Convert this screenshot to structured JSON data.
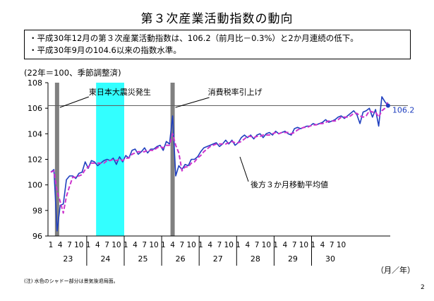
{
  "title": "第３次産業活動指数の動向",
  "summary": [
    "・平成30年12月の第３次産業活動指数は、106.2（前月比－0.3%）と2か月連続の低下。",
    "・平成30年9月の104.6以来の指数水準。"
  ],
  "unit_label": "(22年＝100、季節調整済)",
  "footnote": "(注) 水色のシャドー部分は景気後退局面。",
  "page_number": "2",
  "chart_data": {
    "type": "line",
    "title": "",
    "ylim": [
      96,
      108
    ],
    "yticks": [
      96,
      98,
      100,
      102,
      104,
      106,
      108
    ],
    "month_ticks": [
      "1",
      "4",
      "7",
      "10"
    ],
    "year_labels": [
      "23",
      "24",
      "25",
      "26",
      "27",
      "28",
      "29",
      "30"
    ],
    "x_unit_label": "（月／年）",
    "reference_line": 106.2,
    "end_label": "106.2",
    "recession_shade": {
      "start_index": 15,
      "end_index": 23,
      "color": "#33ffff"
    },
    "event_markers": [
      {
        "label": "東日本大震災発生",
        "index": 2
      },
      {
        "label": "消費税率引上げ",
        "index": 39
      }
    ],
    "moving_average_label": "後方３か月移動平均値",
    "series": [
      {
        "name": "",
        "color": "#1f3fbf",
        "style": "solid",
        "values": [
          101.0,
          101.2,
          96.4,
          98.4,
          98.5,
          100.4,
          100.7,
          100.7,
          100.5,
          100.9,
          101.0,
          101.8,
          101.3,
          101.9,
          101.8,
          101.5,
          101.7,
          101.9,
          102.0,
          101.9,
          102.1,
          101.6,
          102.2,
          101.8,
          102.3,
          102.1,
          102.7,
          102.8,
          102.4,
          102.6,
          102.9,
          102.5,
          102.8,
          102.8,
          103.0,
          103.1,
          102.7,
          103.4,
          103.2,
          105.4,
          100.7,
          101.5,
          101.2,
          101.6,
          101.5,
          102.0,
          102.0,
          102.2,
          102.6,
          102.9,
          103.0,
          103.1,
          103.2,
          103.3,
          103.0,
          103.2,
          103.5,
          103.2,
          103.5,
          103.1,
          103.3,
          103.7,
          103.9,
          103.7,
          103.9,
          103.6,
          103.9,
          104.0,
          103.7,
          104.0,
          104.1,
          103.9,
          104.2,
          104.0,
          104.1,
          104.2,
          104.0,
          103.9,
          104.4,
          104.5,
          104.4,
          104.5,
          104.6,
          104.6,
          104.8,
          104.7,
          104.8,
          104.9,
          105.1,
          104.9,
          105.0,
          105.1,
          105.3,
          105.4,
          105.2,
          105.4,
          105.6,
          105.8,
          105.5,
          104.8,
          105.7,
          105.8,
          106.0,
          105.3,
          105.9,
          104.6,
          106.9,
          106.5,
          106.2
        ]
      },
      {
        "name": "後方３か月移動平均値",
        "color": "#cc33cc",
        "style": "dashed",
        "values": [
          101.0,
          101.1,
          99.5,
          98.7,
          97.8,
          99.1,
          99.9,
          100.6,
          100.6,
          100.7,
          100.8,
          101.2,
          101.4,
          101.7,
          101.7,
          101.7,
          101.7,
          101.7,
          101.9,
          101.9,
          102.0,
          101.9,
          102.0,
          101.9,
          102.1,
          102.1,
          102.4,
          102.5,
          102.6,
          102.6,
          102.6,
          102.7,
          102.7,
          102.7,
          102.9,
          103.0,
          102.9,
          103.1,
          103.1,
          104.0,
          103.1,
          102.5,
          101.1,
          101.4,
          101.4,
          101.7,
          101.8,
          102.1,
          102.3,
          102.6,
          102.8,
          103.0,
          103.1,
          103.2,
          103.2,
          103.2,
          103.2,
          103.3,
          103.4,
          103.3,
          103.3,
          103.4,
          103.6,
          103.8,
          103.8,
          103.7,
          103.8,
          103.8,
          103.9,
          103.9,
          103.9,
          104.0,
          104.1,
          104.0,
          104.1,
          104.1,
          104.1,
          104.0,
          104.1,
          104.3,
          104.4,
          104.5,
          104.5,
          104.6,
          104.7,
          104.7,
          104.8,
          104.8,
          104.9,
          105.0,
          105.0,
          105.0,
          105.1,
          105.3,
          105.3,
          105.3,
          105.4,
          105.6,
          105.6,
          105.4,
          105.3,
          105.4,
          105.8,
          105.7,
          105.7,
          105.3,
          105.8,
          106.0,
          106.5
        ]
      }
    ]
  }
}
